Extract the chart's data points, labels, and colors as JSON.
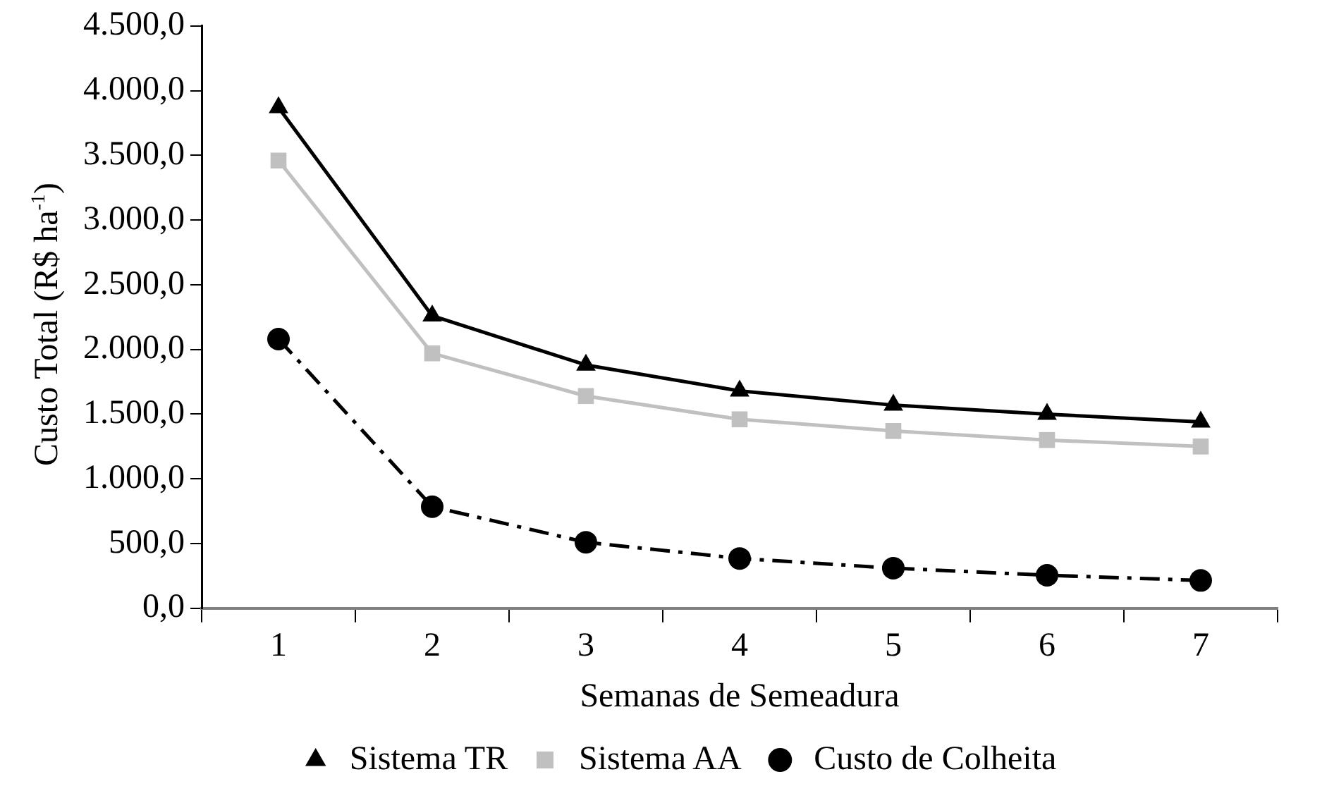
{
  "chart_data": {
    "type": "line",
    "xlabel": "Semanas de Semeadura",
    "ylabel": "Custo Total (R$ ha$^{-1}$)",
    "categories": [
      "1",
      "2",
      "3",
      "4",
      "5",
      "6",
      "7"
    ],
    "series": [
      {
        "name": "Sistema TR",
        "color": "#000000",
        "marker": "triangle",
        "line_style": "solid",
        "values": [
          3870,
          2260,
          1880,
          1680,
          1570,
          1500,
          1440
        ]
      },
      {
        "name": "Sistema AA",
        "color": "#c0c0c0",
        "marker": "square",
        "line_style": "solid",
        "values": [
          3460,
          1970,
          1640,
          1460,
          1370,
          1300,
          1250
        ]
      },
      {
        "name": "Custo de Colheita",
        "color": "#000000",
        "marker": "circle",
        "line_style": "dashed",
        "values": [
          2080,
          785,
          510,
          385,
          310,
          255,
          215
        ]
      }
    ],
    "ylim": [
      0,
      4500
    ],
    "yticks": [
      {
        "value": 0,
        "label": "0,0"
      },
      {
        "value": 500,
        "label": "500,0"
      },
      {
        "value": 1000,
        "label": "1.000,0"
      },
      {
        "value": 1500,
        "label": "1.500,0"
      },
      {
        "value": 2000,
        "label": "2.000,0"
      },
      {
        "value": 2500,
        "label": "2.500,0"
      },
      {
        "value": 3000,
        "label": "3.000,0"
      },
      {
        "value": 3500,
        "label": "3.500,0"
      },
      {
        "value": 4000,
        "label": "4.000,0"
      },
      {
        "value": 4500,
        "label": "4.500,0"
      }
    ],
    "grid": false,
    "legend": "bottom"
  }
}
